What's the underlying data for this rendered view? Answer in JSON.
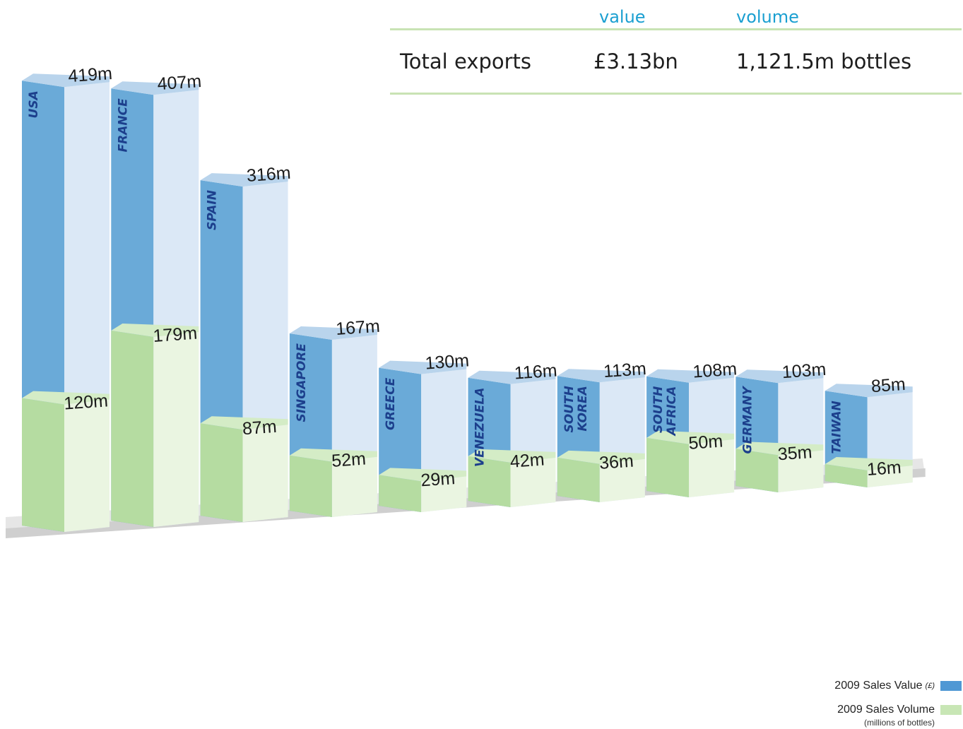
{
  "summary": {
    "col_value": "value",
    "col_volume": "volume",
    "row_label": "Total exports",
    "row_value": "£3.13bn",
    "row_volume": "1,121.5m bottles"
  },
  "legend": {
    "value_label": "2009 Sales Value",
    "value_unit": "(£)",
    "volume_label": "2009 Sales Volume",
    "volume_unit": "(millions of bottles)"
  },
  "colors": {
    "value_front": "#6aaad8",
    "value_side": "#dbe8f6",
    "value_top": "#b9d4ec",
    "volume_front": "#b5dca1",
    "volume_side": "#eaf5e1",
    "volume_top": "#d4ecc6",
    "base": "#cfcfcf",
    "base_top": "#e6e6e6",
    "country_text": "#1c3f8c",
    "summary_header": "#1a9fd1",
    "summary_rule": "#c9e3b4"
  },
  "chart_data": {
    "type": "bar",
    "categories": [
      "USA",
      "FRANCE",
      "SPAIN",
      "SINGAPORE",
      "GREECE",
      "VENEZUELA",
      "SOUTH KOREA",
      "SOUTH AFRICA",
      "GERMANY",
      "TAIWAN"
    ],
    "series": [
      {
        "name": "2009 Sales Value",
        "values": [
          419,
          407,
          316,
          167,
          130,
          116,
          113,
          108,
          103,
          85
        ],
        "labels": [
          "419m",
          "407m",
          "316m",
          "167m",
          "130m",
          "116m",
          "113m",
          "108m",
          "103m",
          "85m"
        ]
      },
      {
        "name": "2009 Sales Volume",
        "values": [
          120,
          179,
          87,
          52,
          29,
          42,
          36,
          50,
          35,
          16
        ],
        "labels": [
          "120m",
          "179m",
          "87m",
          "52m",
          "29m",
          "42m",
          "36m",
          "50m",
          "35m",
          "16m"
        ]
      }
    ]
  }
}
